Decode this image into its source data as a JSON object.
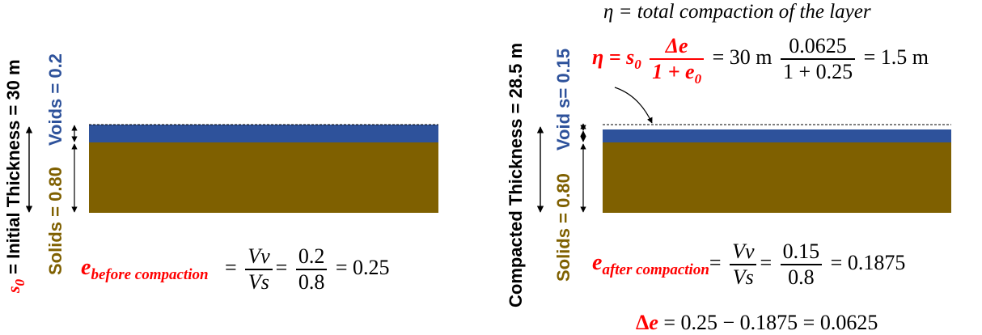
{
  "colors": {
    "void": "#2e529b",
    "solids": "#7f6000",
    "accent": "#ff0000",
    "text": "#000000"
  },
  "before": {
    "thickness_symbol": "s",
    "thickness_sub": "0",
    "thickness_label": " = Initial Thickness = 30 m",
    "voids_label": "Voids = 0.2",
    "solids_label": "Solids = 0.80",
    "void_ratio_fraction": 0.2,
    "e_symbol": "e",
    "e_sub": "before compaction",
    "eq_lhs_num": "Vv",
    "eq_lhs_den": "Vs",
    "eq_num": "0.2",
    "eq_den": "0.8",
    "eq_result": "= 0.25"
  },
  "after": {
    "thickness_label": "Compacted Thickness = 28.5 m",
    "voids_label": "Void s= 0.15",
    "solids_label": "Solids = 0.80",
    "void_ratio_fraction": 0.15,
    "e_symbol": "e",
    "e_sub": "after compaction",
    "eq_lhs_num": "Vv",
    "eq_lhs_den": "Vs",
    "eq_num": "0.15",
    "eq_den": "0.8",
    "eq_result": "= 0.1875"
  },
  "eta_definition": "η = total compaction of the layer",
  "eta_formula": {
    "lhs": "η = s",
    "lhs_sub": "0",
    "frac_num": "Δe",
    "frac_den": "1 + e",
    "frac_den_sub": "0",
    "middle": "= 30 m",
    "num_value": "0.0625",
    "den_value": "1 + 0.25",
    "result": "= 1.5 m"
  },
  "delta_e": {
    "symbol": "Δ",
    "var": "e",
    "rest": " = 0.25  − 0.1875 = 0.0625"
  }
}
